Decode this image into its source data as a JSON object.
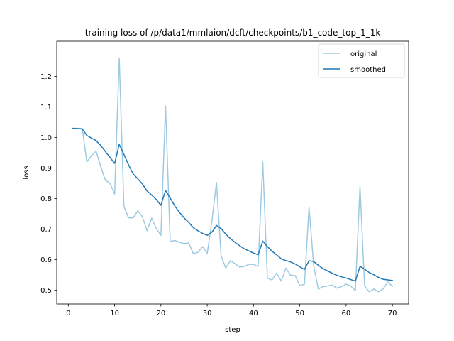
{
  "chart_data": {
    "type": "line",
    "title": "training loss of /p/data1/mmlaion/dcft/checkpoints/b1_code_top_1_1k",
    "xlabel": "step",
    "ylabel": "loss",
    "xlim": [
      -2.5,
      73.5
    ],
    "ylim": [
      0.455,
      1.315
    ],
    "xticks": [
      0,
      10,
      20,
      30,
      40,
      50,
      60,
      70
    ],
    "yticks": [
      0.5,
      0.6,
      0.7,
      0.8,
      0.9,
      1.0,
      1.1,
      1.2
    ],
    "ytick_labels": [
      "0.5",
      "0.6",
      "0.7",
      "0.8",
      "0.9",
      "1.0",
      "1.1",
      "1.2"
    ],
    "legend_position": "top-right",
    "x": [
      1,
      2,
      3,
      4,
      5,
      6,
      7,
      8,
      9,
      10,
      11,
      12,
      13,
      14,
      15,
      16,
      17,
      18,
      19,
      20,
      21,
      22,
      23,
      24,
      25,
      26,
      27,
      28,
      29,
      30,
      31,
      32,
      33,
      34,
      35,
      36,
      37,
      38,
      39,
      40,
      41,
      42,
      43,
      44,
      45,
      46,
      47,
      48,
      49,
      50,
      51,
      52,
      53,
      54,
      55,
      56,
      57,
      58,
      59,
      60,
      61,
      62,
      63,
      64,
      65,
      66,
      67,
      68,
      69,
      70
    ],
    "series": [
      {
        "name": "original",
        "color": "#9ecae1",
        "values": [
          1.03,
          1.03,
          1.03,
          0.92,
          0.94,
          0.955,
          0.905,
          0.86,
          0.85,
          0.815,
          1.26,
          0.775,
          0.737,
          0.737,
          0.76,
          0.741,
          0.695,
          0.736,
          0.702,
          0.68,
          1.103,
          0.66,
          0.663,
          0.657,
          0.653,
          0.655,
          0.62,
          0.624,
          0.643,
          0.62,
          0.725,
          0.853,
          0.613,
          0.573,
          0.597,
          0.587,
          0.576,
          0.578,
          0.585,
          0.585,
          0.578,
          0.92,
          0.54,
          0.534,
          0.557,
          0.53,
          0.573,
          0.549,
          0.548,
          0.515,
          0.52,
          0.772,
          0.58,
          0.504,
          0.512,
          0.514,
          0.517,
          0.507,
          0.512,
          0.52,
          0.514,
          0.499,
          0.84,
          0.514,
          0.495,
          0.504,
          0.495,
          0.505,
          0.527,
          0.513
        ]
      },
      {
        "name": "smoothed",
        "color": "#1f77b4",
        "values": [
          1.03,
          1.029,
          1.028,
          1.007,
          0.998,
          0.99,
          0.974,
          0.954,
          0.935,
          0.915,
          0.977,
          0.945,
          0.911,
          0.881,
          0.865,
          0.848,
          0.825,
          0.812,
          0.797,
          0.778,
          0.827,
          0.802,
          0.776,
          0.755,
          0.737,
          0.722,
          0.705,
          0.695,
          0.686,
          0.68,
          0.69,
          0.712,
          0.702,
          0.684,
          0.669,
          0.657,
          0.646,
          0.636,
          0.629,
          0.622,
          0.616,
          0.661,
          0.643,
          0.628,
          0.616,
          0.603,
          0.597,
          0.593,
          0.586,
          0.577,
          0.568,
          0.597,
          0.594,
          0.582,
          0.571,
          0.563,
          0.556,
          0.549,
          0.544,
          0.54,
          0.535,
          0.53,
          0.578,
          0.569,
          0.558,
          0.551,
          0.542,
          0.536,
          0.534,
          0.532
        ]
      }
    ]
  }
}
